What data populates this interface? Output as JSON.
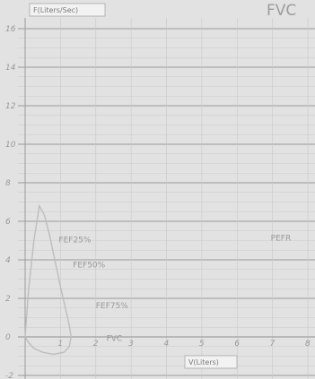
{
  "chart_data": {
    "type": "line",
    "title": "FVC",
    "ylabel": "F(Liters/Sec)",
    "xlabel": "V(Liters)",
    "xlim": [
      0,
      8
    ],
    "ylim": [
      -2,
      16
    ],
    "y_ticks": [
      "-2",
      "0",
      "2",
      "4",
      "6",
      "8",
      "10",
      "12",
      "14",
      "16"
    ],
    "x_ticks": [
      "1",
      "2",
      "3",
      "4",
      "5",
      "6",
      "7",
      "8"
    ],
    "grid": true,
    "series": [
      {
        "x": [
          0.0,
          0.1,
          0.25,
          0.4,
          0.55,
          0.7,
          0.85,
          1.0,
          1.15,
          1.25,
          1.3,
          1.25,
          1.1,
          0.8,
          0.5,
          0.25,
          0.1,
          0.0
        ],
        "y": [
          0.0,
          2.5,
          5.0,
          6.8,
          6.3,
          5.2,
          3.9,
          2.6,
          1.4,
          0.6,
          0.0,
          -0.5,
          -0.8,
          -0.9,
          -0.8,
          -0.6,
          -0.3,
          0.0
        ]
      }
    ],
    "annotations": [
      {
        "text": "PEFR",
        "x": 6.95,
        "y": 5.0
      },
      {
        "text": "FEF25%",
        "x": 0.95,
        "y": 4.9
      },
      {
        "text": "FEF50%",
        "x": 1.35,
        "y": 3.6
      },
      {
        "text": "FEF75%",
        "x": 2.0,
        "y": 1.5
      },
      {
        "text": "FVC",
        "x": 2.3,
        "y": -0.2
      }
    ]
  }
}
